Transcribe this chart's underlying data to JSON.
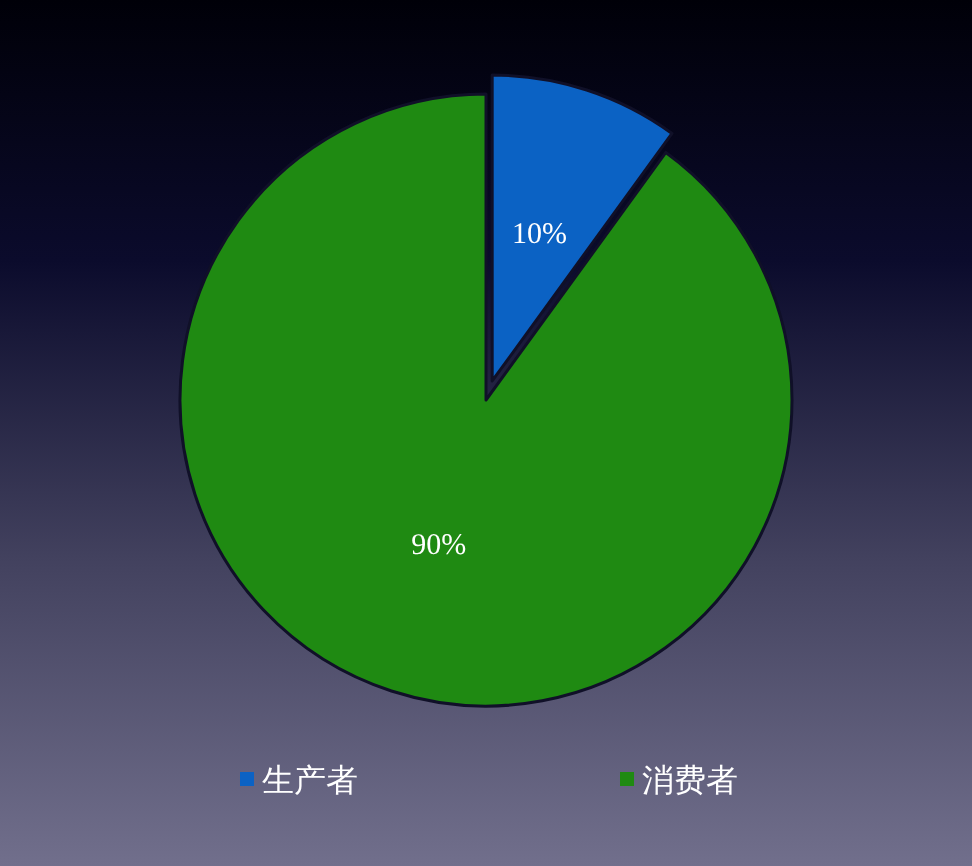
{
  "chart_data": {
    "type": "pie",
    "categories": [
      "生产者",
      "消费者"
    ],
    "values": [
      10,
      90
    ],
    "colors": [
      "#0b62c4",
      "#1f8a12"
    ],
    "value_labels": [
      "10%",
      "90%"
    ],
    "legend": "bottom"
  }
}
